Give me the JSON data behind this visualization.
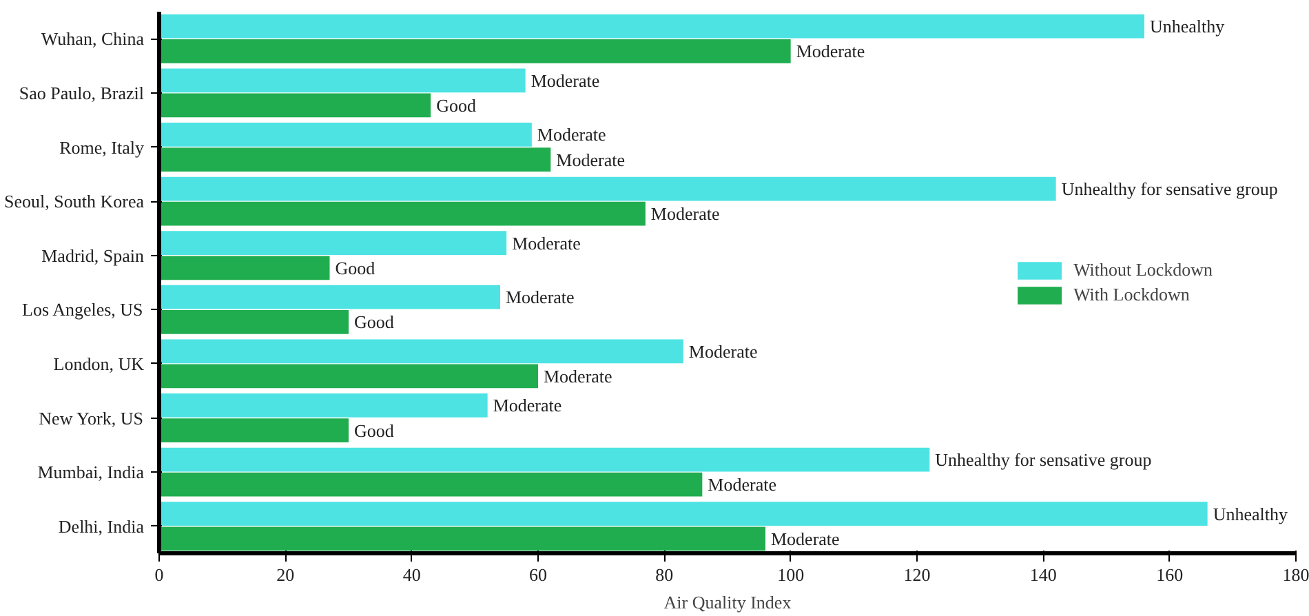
{
  "chart_data": {
    "type": "bar",
    "orientation": "horizontal",
    "xlabel": "Air Quality Index",
    "categories": [
      "Wuhan, China",
      "Sao Paulo, Brazil",
      "Rome, Italy",
      "Seoul, South Korea",
      "Madrid, Spain",
      "Los Angeles, US",
      "London, UK",
      "New York, US",
      "Mumbai, India",
      "Delhi, India"
    ],
    "series": [
      {
        "name": "Without Lockdown",
        "color": "#4de3e3",
        "values": [
          156,
          58,
          59,
          142,
          55,
          54,
          83,
          52,
          122,
          166
        ],
        "value_labels": [
          "Unhealthy",
          "Moderate",
          "Moderate",
          "Unhealthy for sensative group",
          "Moderate",
          "Moderate",
          "Moderate",
          "Moderate",
          "Unhealthy for sensative group",
          "Unhealthy"
        ]
      },
      {
        "name": "With Lockdown",
        "color": "#1fad4f",
        "values": [
          100,
          43,
          62,
          77,
          27,
          30,
          60,
          30,
          86,
          96
        ],
        "value_labels": [
          "Moderate",
          "Good",
          "Moderate",
          "Moderate",
          "Good",
          "Good",
          "Moderate",
          "Good",
          "Moderate",
          "Moderate"
        ]
      }
    ],
    "xlim": [
      0,
      180
    ],
    "xticks": [
      0,
      20,
      40,
      60,
      80,
      100,
      120,
      140,
      160,
      180
    ],
    "grid": false,
    "legend": "right"
  }
}
